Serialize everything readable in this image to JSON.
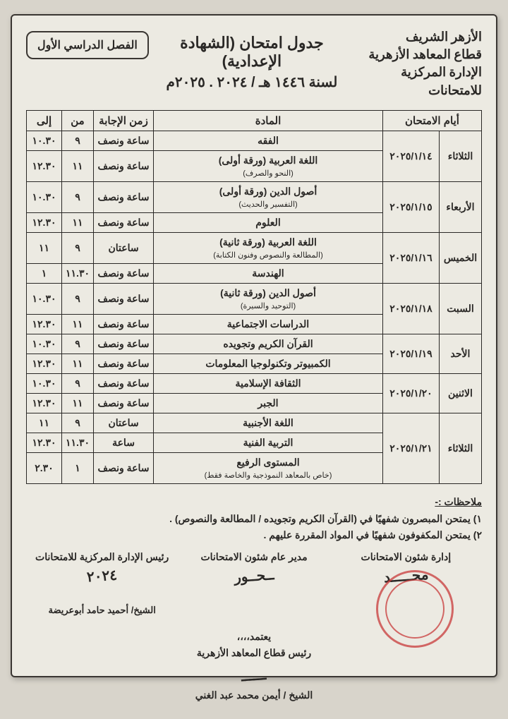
{
  "institution": {
    "line1": "الأزهر الشريف",
    "line2": "قطاع المعاهد الأزهرية",
    "line3": "الإدارة المركزية للامتحانات"
  },
  "title": {
    "main": "جدول امتحان (الشهادة الإعدادية)",
    "year": "لسنة ١٤٤٦ هـ / ٢٠٢٤ . ٢٠٢٥م"
  },
  "semester_badge": "الفصل الدراسي الأول",
  "columns": {
    "days": "أيام الامتحان",
    "subject": "المادة",
    "duration": "زمن الإجابة",
    "from": "من",
    "to": "إلى"
  },
  "rows": [
    {
      "day": "الثلاثاء",
      "date": "٢٠٢٥/١/١٤",
      "span": 2,
      "subject": "الفقه",
      "duration": "ساعة ونصف",
      "from": "٩",
      "to": "١٠.٣٠"
    },
    {
      "subject": "اللغة العربية (ورقة أولى)",
      "sub": "(النحو والصرف)",
      "duration": "ساعة ونصف",
      "from": "١١",
      "to": "١٢.٣٠"
    },
    {
      "day": "الأربعاء",
      "date": "٢٠٢٥/١/١٥",
      "span": 2,
      "subject": "أصول الدين (ورقة أولى)",
      "sub": "(التفسير والحديث)",
      "duration": "ساعة ونصف",
      "from": "٩",
      "to": "١٠.٣٠"
    },
    {
      "subject": "العلوم",
      "duration": "ساعة ونصف",
      "from": "١١",
      "to": "١٢.٣٠"
    },
    {
      "day": "الخميس",
      "date": "٢٠٢٥/١/١٦",
      "span": 2,
      "subject": "اللغة العربية (ورقة ثانية)",
      "sub": "(المطالعة والنصوص وفنون الكتابة)",
      "duration": "ساعتان",
      "from": "٩",
      "to": "١١"
    },
    {
      "subject": "الهندسة",
      "duration": "ساعة ونصف",
      "from": "١١.٣٠",
      "to": "١"
    },
    {
      "day": "السبت",
      "date": "٢٠٢٥/١/١٨",
      "span": 2,
      "subject": "أصول الدين (ورقة ثانية)",
      "sub": "(التوحيد والسيرة)",
      "duration": "ساعة ونصف",
      "from": "٩",
      "to": "١٠.٣٠"
    },
    {
      "subject": "الدراسات الاجتماعية",
      "duration": "ساعة ونصف",
      "from": "١١",
      "to": "١٢.٣٠"
    },
    {
      "day": "الأحد",
      "date": "٢٠٢٥/١/١٩",
      "span": 2,
      "subject": "القرآن الكريم وتجويده",
      "duration": "ساعة ونصف",
      "from": "٩",
      "to": "١٠.٣٠"
    },
    {
      "subject": "الكمبيوتر وتكنولوجيا المعلومات",
      "duration": "ساعة ونصف",
      "from": "١١",
      "to": "١٢.٣٠"
    },
    {
      "day": "الاثنين",
      "date": "٢٠٢٥/١/٢٠",
      "span": 2,
      "subject": "الثقافة الإسلامية",
      "duration": "ساعة ونصف",
      "from": "٩",
      "to": "١٠.٣٠"
    },
    {
      "subject": "الجبر",
      "duration": "ساعة ونصف",
      "from": "١١",
      "to": "١٢.٣٠"
    },
    {
      "day": "الثلاثاء",
      "date": "٢٠٢٥/١/٢١",
      "span": 3,
      "subject": "اللغة الأجنبية",
      "duration": "ساعتان",
      "from": "٩",
      "to": "١١"
    },
    {
      "subject": "التربية الفنية",
      "duration": "ساعة",
      "from": "١١.٣٠",
      "to": "١٢.٣٠"
    },
    {
      "subject": "المستوى الرفيع",
      "sub": "(خاص بالمعاهد النموذجية والخاصة فقط)",
      "duration": "ساعة ونصف",
      "from": "١",
      "to": "٢.٣٠"
    }
  ],
  "notes": {
    "title": "ملاحظات :-",
    "n1": "١) يمتحن المبصرون شفهيًا في (القرآن الكريم وتجويده / المطالعة والنصوص) .",
    "n2": "٢) يمتحن المكفوفون شفهيًا في المواد المقررة عليهم ."
  },
  "signatures": {
    "s1_title": "إدارة شئون الامتحانات",
    "s2_title": "مدير عام شئون الامتحانات",
    "s3_title": "رئيس الإدارة المركزية للامتحانات",
    "s3_name": "الشيخ/ أحميد حامد أبوعريضة"
  },
  "approval": {
    "l1": "يعتمد،،،،",
    "l2": "رئيس قطاع المعاهد الأزهرية",
    "l3": "الشيخ / أيمن محمد عبد الغني"
  }
}
